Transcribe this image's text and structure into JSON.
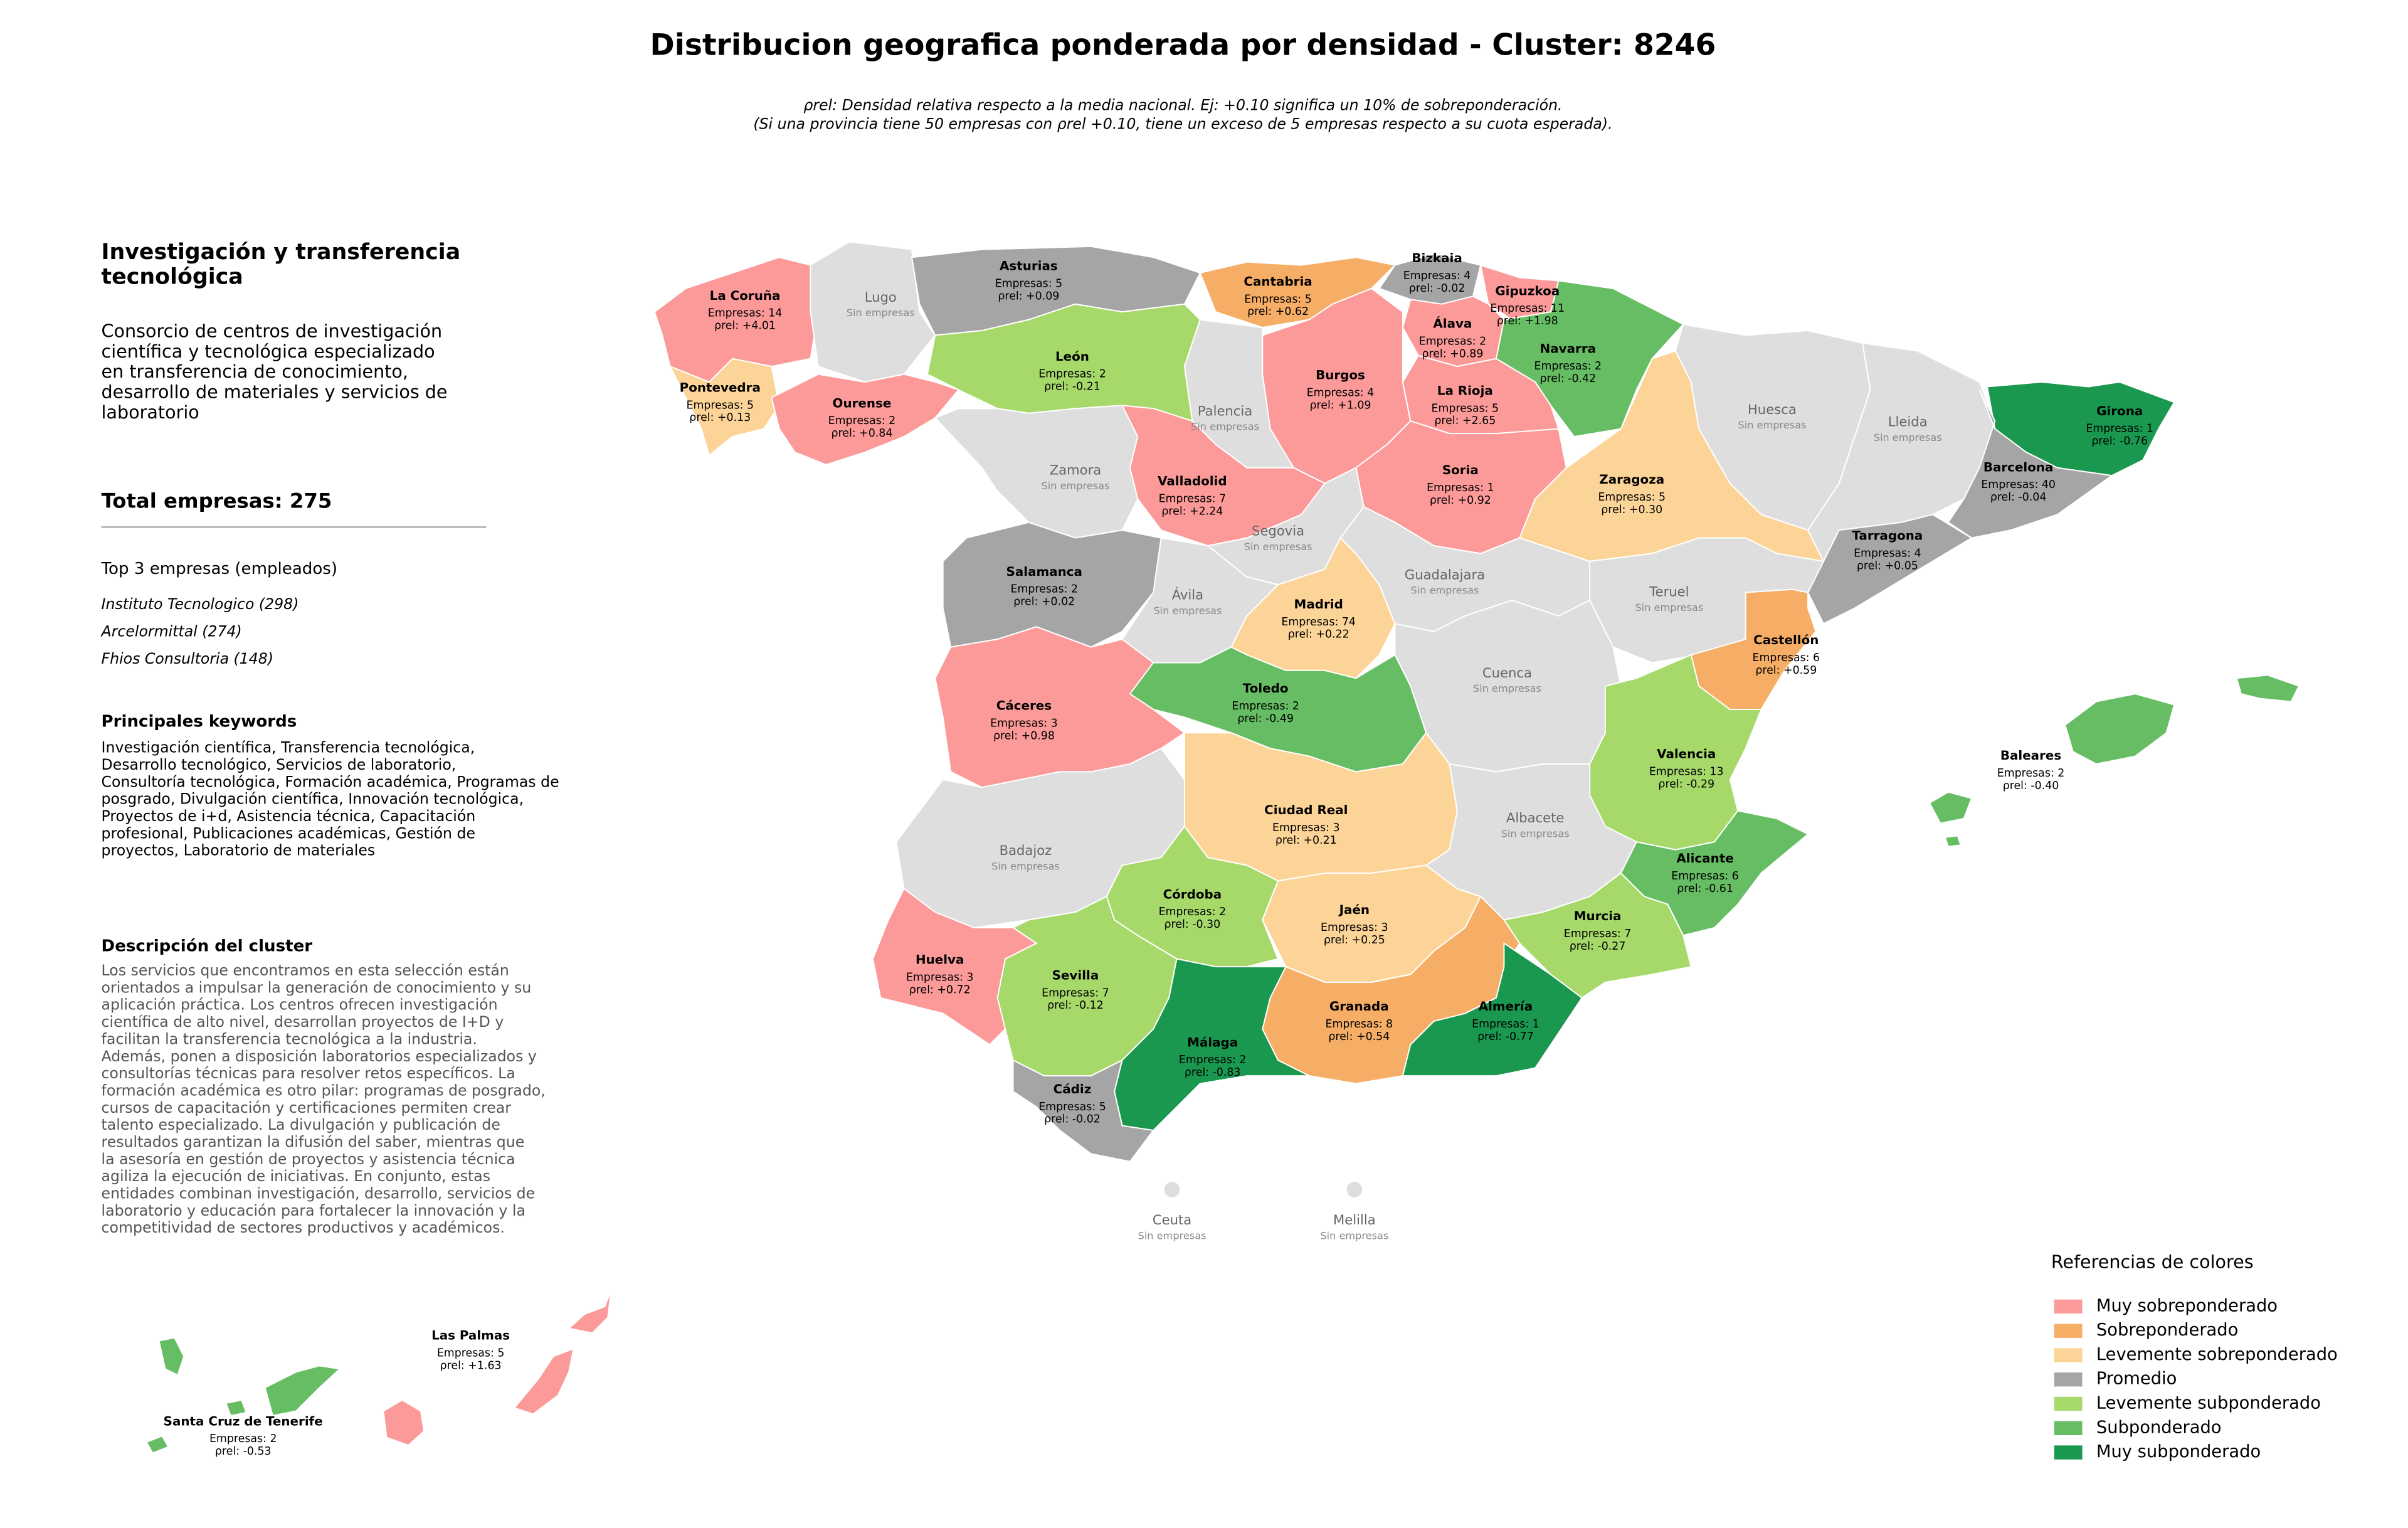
{
  "header": {
    "title": "Distribucion geografica ponderada por densidad - Cluster: 8246",
    "subtitle_lines": [
      "ρrel: Densidad relativa respecto a la media nacional. Ej: +0.10 significa un 10% de sobreponderación.",
      "(Si una provincia tiene 50 empresas con ρrel +0.10, tiene un exceso de 5 empresas respecto a su cuota esperada)."
    ]
  },
  "panel": {
    "title_lines": [
      "Investigación y transferencia",
      "tecnológica"
    ],
    "summary_lines": [
      "Consorcio de centros de investigación",
      "científica y tecnológica especializado",
      "en transferencia de conocimiento,",
      "desarrollo de materiales y servicios de",
      "laboratorio"
    ],
    "total": "Total empresas: 275",
    "top_heading": "Top 3 empresas (empleados)",
    "top_items": [
      "Instituto Tecnologico (298)",
      "Arcelormittal (274)",
      "Fhios Consultoria (148)"
    ],
    "keywords_heading": "Principales keywords",
    "keywords_lines": [
      "Investigación científica, Transferencia tecnológica,",
      "Desarrollo tecnológico, Servicios de laboratorio,",
      "Consultoría tecnológica, Formación académica, Programas de",
      "posgrado, Divulgación científica, Innovación tecnológica,",
      "Proyectos de i+d, Asistencia técnica, Capacitación",
      "profesional, Publicaciones académicas, Gestión de",
      "proyectos, Laboratorio de materiales"
    ],
    "description_heading": "Descripción del cluster",
    "description_lines": [
      "Los servicios que encontramos en esta selección están",
      "orientados a impulsar la generación de conocimiento y su",
      "aplicación práctica. Los centros ofrecen investigación",
      "científica de alto nivel, desarrollan proyectos de I+D y",
      "facilitan la transferencia tecnológica a la industria.",
      "Además, ponen a disposición laboratorios especializados y",
      "consultorías técnicas para resolver retos específicos. La",
      "formación académica es otro pilar: programas de posgrado,",
      "cursos de capacitación y certificaciones permiten crear",
      "talento especializado. La divulgación y publicación de",
      "resultados garantizan la difusión del saber, mientras que",
      "la asesoría en gestión de proyectos y asistencia técnica",
      "agiliza la ejecución de iniciativas. En conjunto, estas",
      "entidades combinan investigación, desarrollo, servicios de",
      "laboratorio y educación para fortalecer la innovación y la",
      "competitividad de sectores productivos y académicos."
    ]
  },
  "map": {
    "no_data_label": "Sin empresas",
    "no_data_color": "#dedede",
    "provinces": [
      {
        "name": "La Coruña",
        "empresas": "Empresas: 14",
        "rho": "ρrel: +4.01",
        "level": 0
      },
      {
        "name": "Lugo"
      },
      {
        "name": "Asturias",
        "empresas": "Empresas: 5",
        "rho": "ρrel: +0.09",
        "level": 3
      },
      {
        "name": "Cantabria",
        "empresas": "Empresas: 5",
        "rho": "ρrel: +0.62",
        "level": 1
      },
      {
        "name": "Bizkaia",
        "empresas": "Empresas: 4",
        "rho": "ρrel: -0.02",
        "level": 3
      },
      {
        "name": "Gipuzkoa",
        "empresas": "Empresas: 11",
        "rho": "ρrel: +1.98",
        "level": 0
      },
      {
        "name": "Álava",
        "empresas": "Empresas: 2",
        "rho": "ρrel: +0.89",
        "level": 0
      },
      {
        "name": "Navarra",
        "empresas": "Empresas: 2",
        "rho": "ρrel: -0.42",
        "level": 5
      },
      {
        "name": "Burgos",
        "empresas": "Empresas: 4",
        "rho": "ρrel: +1.09",
        "level": 0
      },
      {
        "name": "La Rioja",
        "empresas": "Empresas: 5",
        "rho": "ρrel: +2.65",
        "level": 0
      },
      {
        "name": "León",
        "empresas": "Empresas: 2",
        "rho": "ρrel: -0.21",
        "level": 4
      },
      {
        "name": "Pontevedra",
        "empresas": "Empresas: 5",
        "rho": "ρrel: +0.13",
        "level": 2
      },
      {
        "name": "Ourense",
        "empresas": "Empresas: 2",
        "rho": "ρrel: +0.84",
        "level": 0
      },
      {
        "name": "Palencia"
      },
      {
        "name": "Zamora"
      },
      {
        "name": "Valladolid",
        "empresas": "Empresas: 7",
        "rho": "ρrel: +2.24",
        "level": 0
      },
      {
        "name": "Soria",
        "empresas": "Empresas: 1",
        "rho": "ρrel: +0.92",
        "level": 0
      },
      {
        "name": "Zaragoza",
        "empresas": "Empresas: 5",
        "rho": "ρrel: +0.30",
        "level": 2
      },
      {
        "name": "Huesca"
      },
      {
        "name": "Lleida"
      },
      {
        "name": "Girona",
        "empresas": "Empresas: 1",
        "rho": "ρrel: -0.76",
        "level": 6
      },
      {
        "name": "Barcelona",
        "empresas": "Empresas: 40",
        "rho": "ρrel: -0.04",
        "level": 3
      },
      {
        "name": "Tarragona",
        "empresas": "Empresas: 4",
        "rho": "ρrel: +0.05",
        "level": 3
      },
      {
        "name": "Segovia"
      },
      {
        "name": "Salamanca",
        "empresas": "Empresas: 2",
        "rho": "ρrel: +0.02",
        "level": 3
      },
      {
        "name": "Ávila"
      },
      {
        "name": "Madrid",
        "empresas": "Empresas: 74",
        "rho": "ρrel: +0.22",
        "level": 2
      },
      {
        "name": "Guadalajara"
      },
      {
        "name": "Teruel"
      },
      {
        "name": "Castellón",
        "empresas": "Empresas: 6",
        "rho": "ρrel: +0.59",
        "level": 1
      },
      {
        "name": "Cuenca"
      },
      {
        "name": "Toledo",
        "empresas": "Empresas: 2",
        "rho": "ρrel: -0.49",
        "level": 5
      },
      {
        "name": "Cáceres",
        "empresas": "Empresas: 3",
        "rho": "ρrel: +0.98",
        "level": 0
      },
      {
        "name": "Valencia",
        "empresas": "Empresas: 13",
        "rho": "ρrel: -0.29",
        "level": 4
      },
      {
        "name": "Baleares",
        "empresas": "Empresas: 2",
        "rho": "ρrel: -0.40",
        "level": 5
      },
      {
        "name": "Ciudad Real",
        "empresas": "Empresas: 3",
        "rho": "ρrel: +0.21",
        "level": 2
      },
      {
        "name": "Badajoz"
      },
      {
        "name": "Albacete"
      },
      {
        "name": "Alicante",
        "empresas": "Empresas: 6",
        "rho": "ρrel: -0.61",
        "level": 5
      },
      {
        "name": "Córdoba",
        "empresas": "Empresas: 2",
        "rho": "ρrel: -0.30",
        "level": 4
      },
      {
        "name": "Jaén",
        "empresas": "Empresas: 3",
        "rho": "ρrel: +0.25",
        "level": 2
      },
      {
        "name": "Murcia",
        "empresas": "Empresas: 7",
        "rho": "ρrel: -0.27",
        "level": 4
      },
      {
        "name": "Huelva",
        "empresas": "Empresas: 3",
        "rho": "ρrel: +0.72",
        "level": 0
      },
      {
        "name": "Sevilla",
        "empresas": "Empresas: 7",
        "rho": "ρrel: -0.12",
        "level": 4
      },
      {
        "name": "Granada",
        "empresas": "Empresas: 8",
        "rho": "ρrel: +0.54",
        "level": 1
      },
      {
        "name": "Almería",
        "empresas": "Empresas: 1",
        "rho": "ρrel: -0.77",
        "level": 6
      },
      {
        "name": "Málaga",
        "empresas": "Empresas: 2",
        "rho": "ρrel: -0.83",
        "level": 6
      },
      {
        "name": "Cádiz",
        "empresas": "Empresas: 5",
        "rho": "ρrel: -0.02",
        "level": 3
      },
      {
        "name": "Las Palmas",
        "empresas": "Empresas: 5",
        "rho": "ρrel: +1.63",
        "level": 0
      },
      {
        "name": "Santa Cruz de Tenerife",
        "empresas": "Empresas: 2",
        "rho": "ρrel: -0.53",
        "level": 5
      },
      {
        "name": "Ceuta"
      },
      {
        "name": "Melilla"
      }
    ]
  },
  "legend": {
    "title": "Referencias de colores",
    "items": [
      {
        "label": "Muy sobreponderado",
        "color": "#fb9a99"
      },
      {
        "label": "Sobreponderado",
        "color": "#f6ad65"
      },
      {
        "label": "Levemente sobreponderado",
        "color": "#fdd497"
      },
      {
        "label": "Promedio",
        "color": "#a5a5a5"
      },
      {
        "label": "Levemente subponderado",
        "color": "#a6d96a"
      },
      {
        "label": "Subponderado",
        "color": "#66bd63"
      },
      {
        "label": "Muy subponderado",
        "color": "#1a9850"
      }
    ]
  }
}
